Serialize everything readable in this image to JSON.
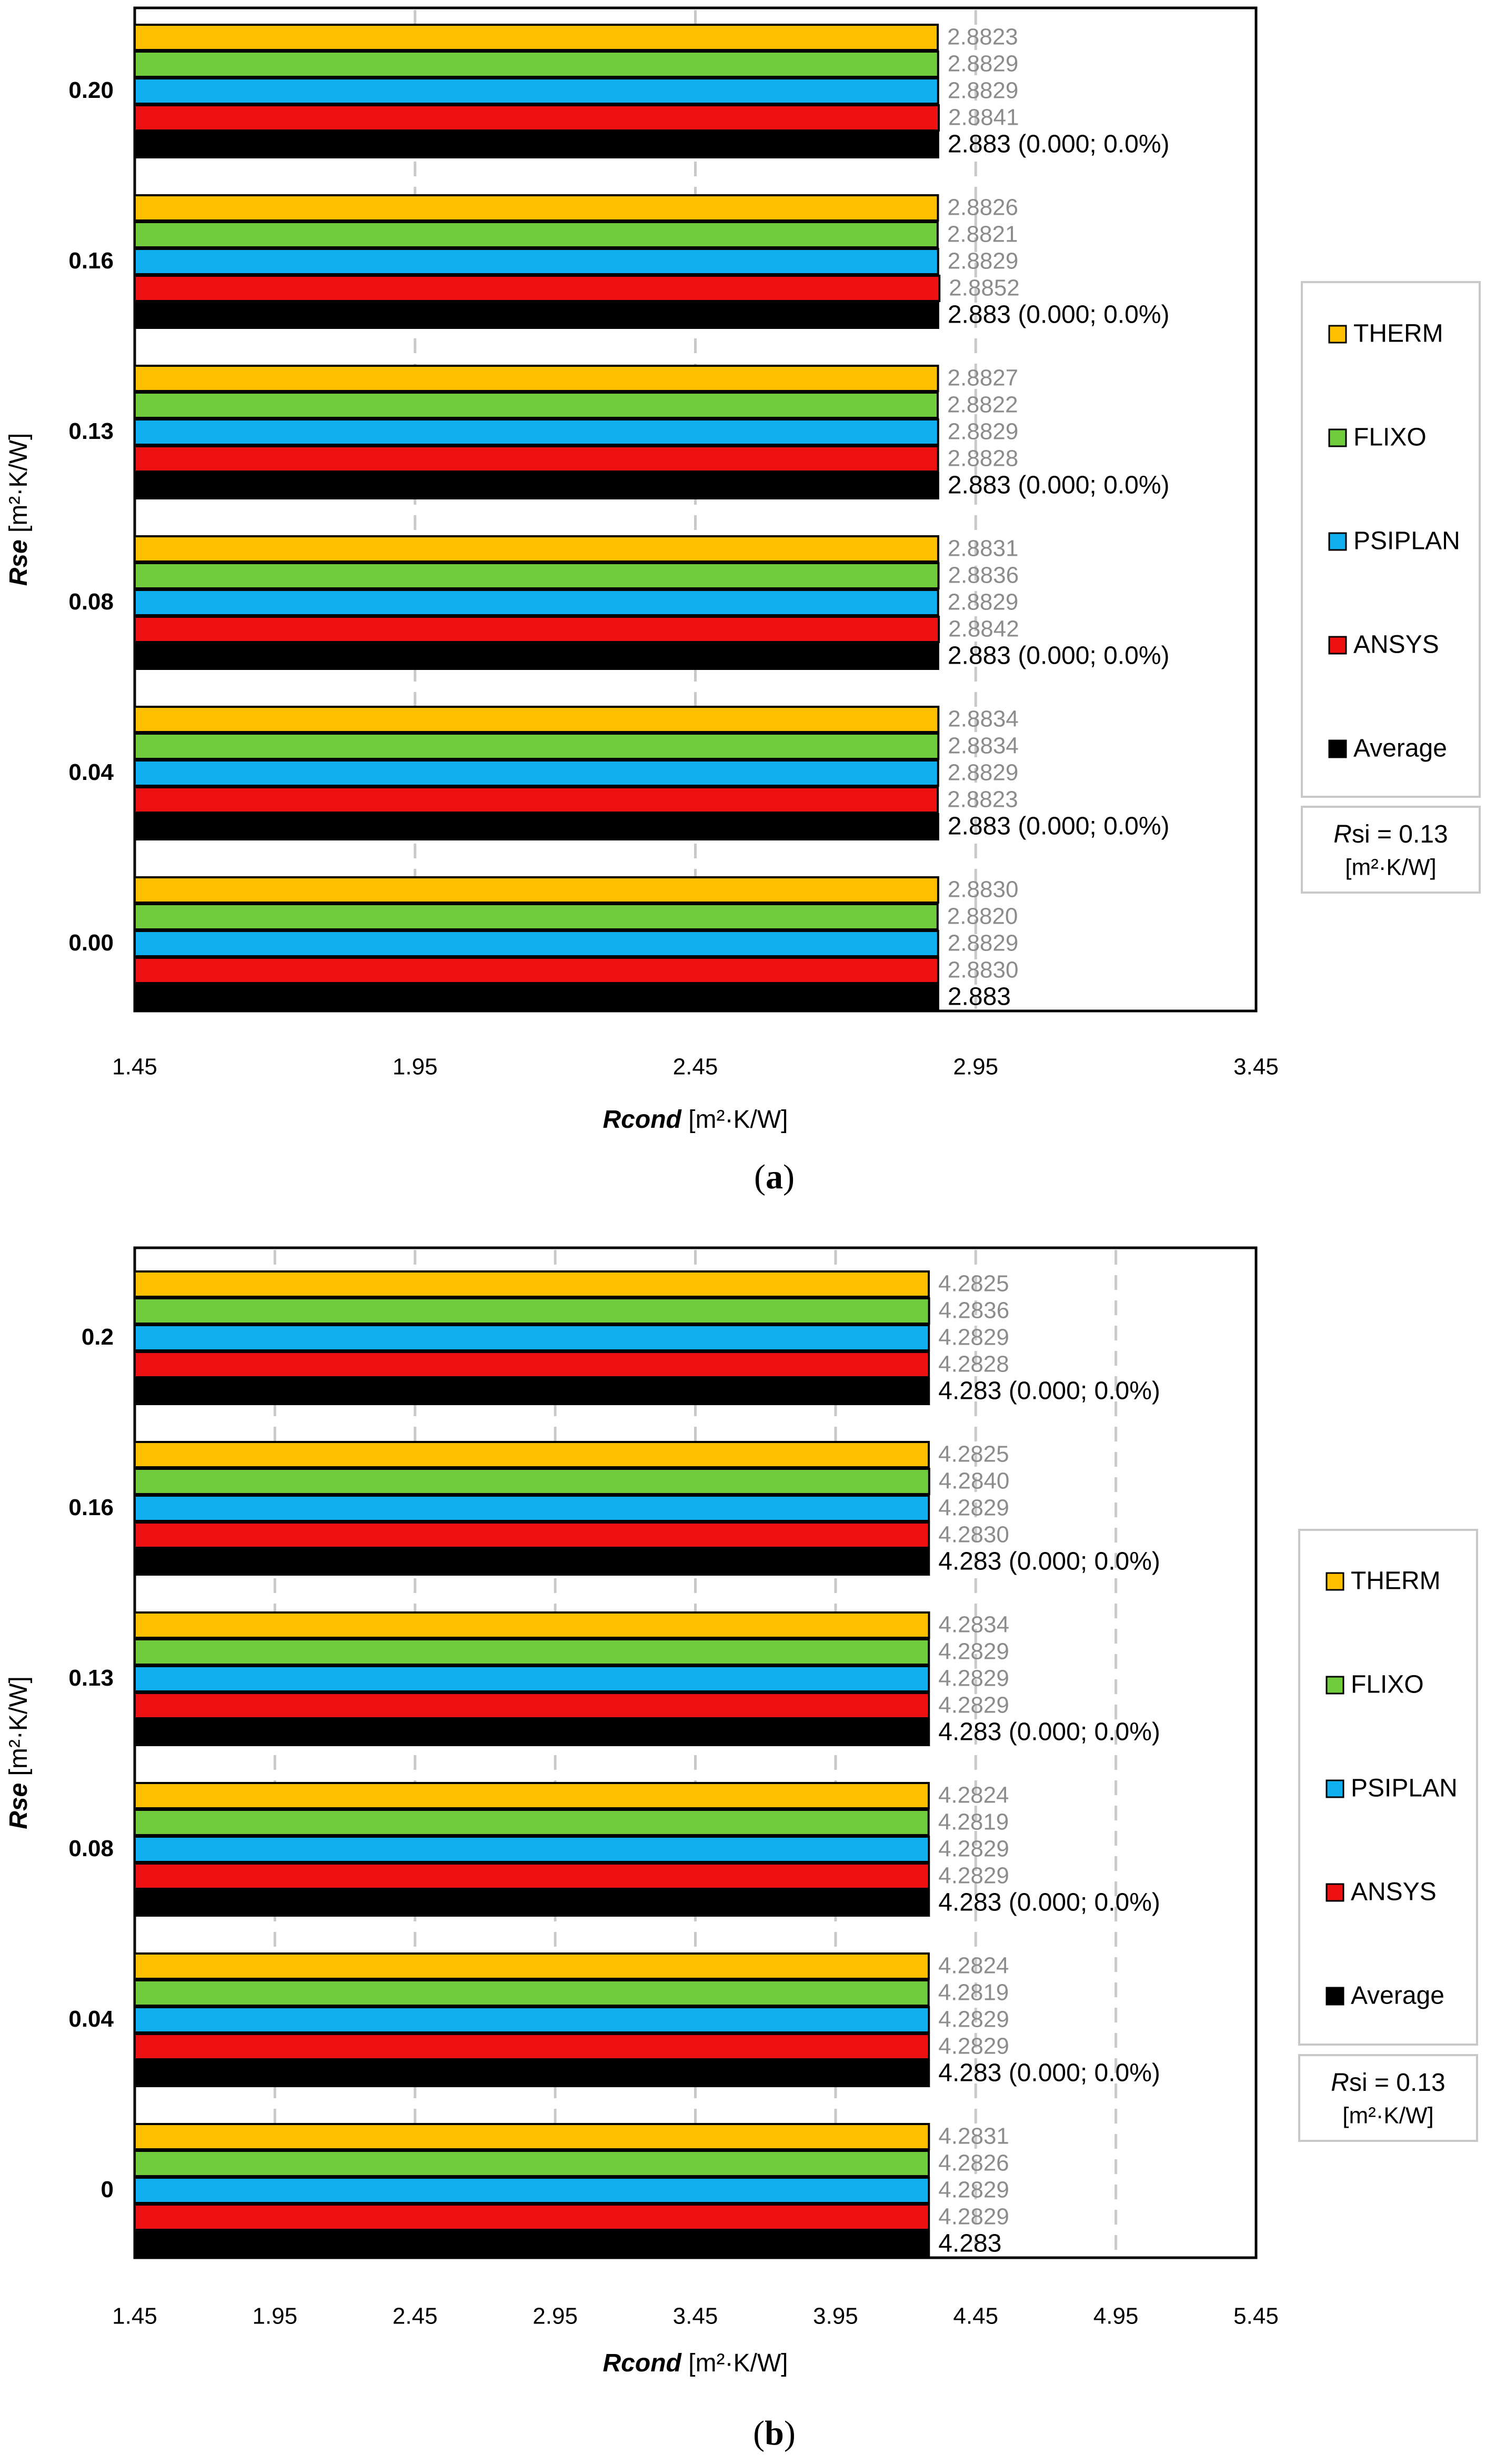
{
  "chart_data": [
    {
      "type": "bar",
      "panel": "a",
      "caption_prefix": "(",
      "caption_letter": "a",
      "caption_suffix": ")",
      "title": "",
      "ylabel_bold": "Rse",
      "ylabel_unit": " [m²·K/W]",
      "xlabel_bold": "Rcond",
      "xlabel_unit": " [m²·K/W]",
      "xlim": [
        1.45,
        3.45
      ],
      "xticks": [
        "1.45",
        "1.95",
        "2.45",
        "2.95",
        "3.45"
      ],
      "grid": "vertical dashed",
      "categories": [
        "0.20",
        "0.16",
        "0.13",
        "0.08",
        "0.04",
        "0.00"
      ],
      "series": [
        {
          "name": "THERM",
          "color": "#ffc000",
          "values": [
            2.8823,
            2.8826,
            2.8827,
            2.8831,
            2.8834,
            2.883
          ],
          "labels": [
            "2.8823",
            "2.8826",
            "2.8827",
            "2.8831",
            "2.8834",
            "2.8830"
          ]
        },
        {
          "name": "FLIXO",
          "color": "#70cc3c",
          "values": [
            2.8829,
            2.8821,
            2.8822,
            2.8836,
            2.8834,
            2.882
          ],
          "labels": [
            "2.8829",
            "2.8821",
            "2.8822",
            "2.8836",
            "2.8834",
            "2.8820"
          ]
        },
        {
          "name": "PSIPLAN",
          "color": "#10b0f0",
          "values": [
            2.8829,
            2.8829,
            2.8829,
            2.8829,
            2.8829,
            2.8829
          ],
          "labels": [
            "2.8829",
            "2.8829",
            "2.8829",
            "2.8829",
            "2.8829",
            "2.8829"
          ]
        },
        {
          "name": "ANSYS",
          "color": "#ee1111",
          "values": [
            2.8841,
            2.8852,
            2.8828,
            2.8842,
            2.8823,
            2.883
          ],
          "labels": [
            "2.8841",
            "2.8852",
            "2.8828",
            "2.8842",
            "2.8823",
            "2.8830"
          ]
        },
        {
          "name": "Average",
          "color": "#000000",
          "values": [
            2.883,
            2.883,
            2.883,
            2.883,
            2.883,
            2.883
          ],
          "labels": [
            "2.883 (0.000; 0.0%)",
            "2.883 (0.000; 0.0%)",
            "2.883 (0.000; 0.0%)",
            "2.883 (0.000; 0.0%)",
            "2.883 (0.000; 0.0%)",
            "2.883"
          ]
        }
      ],
      "legend": "right",
      "note_italic": "R",
      "note_rest": "si = 0.13",
      "note_unit": "[m²·K/W]"
    },
    {
      "type": "bar",
      "panel": "b",
      "caption_prefix": "(",
      "caption_letter": "b",
      "caption_suffix": ")",
      "title": "",
      "ylabel_bold": "Rse",
      "ylabel_unit": " [m²·K/W]",
      "xlabel_bold": "Rcond",
      "xlabel_unit": " [m²·K/W]",
      "xlim": [
        1.45,
        5.45
      ],
      "xticks": [
        "1.45",
        "1.95",
        "2.45",
        "2.95",
        "3.45",
        "3.95",
        "4.45",
        "4.95",
        "5.45"
      ],
      "grid": "vertical dashed",
      "categories": [
        "0.2",
        "0.16",
        "0.13",
        "0.08",
        "0.04",
        "0"
      ],
      "series": [
        {
          "name": "THERM",
          "color": "#ffc000",
          "values": [
            4.2825,
            4.2825,
            4.2834,
            4.2824,
            4.2824,
            4.2831
          ],
          "labels": [
            "4.2825",
            "4.2825",
            "4.2834",
            "4.2824",
            "4.2824",
            "4.2831"
          ]
        },
        {
          "name": "FLIXO",
          "color": "#70cc3c",
          "values": [
            4.2836,
            4.284,
            4.2829,
            4.2819,
            4.2819,
            4.2826
          ],
          "labels": [
            "4.2836",
            "4.2840",
            "4.2829",
            "4.2819",
            "4.2819",
            "4.2826"
          ]
        },
        {
          "name": "PSIPLAN",
          "color": "#10b0f0",
          "values": [
            4.2829,
            4.2829,
            4.2829,
            4.2829,
            4.2829,
            4.2829
          ],
          "labels": [
            "4.2829",
            "4.2829",
            "4.2829",
            "4.2829",
            "4.2829",
            "4.2829"
          ]
        },
        {
          "name": "ANSYS",
          "color": "#ee1111",
          "values": [
            4.2828,
            4.283,
            4.2829,
            4.2829,
            4.2829,
            4.2829
          ],
          "labels": [
            "4.2828",
            "4.2830",
            "4.2829",
            "4.2829",
            "4.2829",
            "4.2829"
          ]
        },
        {
          "name": "Average",
          "color": "#000000",
          "values": [
            4.283,
            4.283,
            4.283,
            4.283,
            4.283,
            4.283
          ],
          "labels": [
            "4.283 (0.000; 0.0%)",
            "4.283 (0.000; 0.0%)",
            "4.283 (0.000; 0.0%)",
            "4.283 (0.000; 0.0%)",
            "4.283 (0.000; 0.0%)",
            "4.283"
          ]
        }
      ],
      "legend": "right",
      "note_italic": "R",
      "note_rest": "si = 0.13",
      "note_unit": "[m²·K/W]"
    }
  ]
}
